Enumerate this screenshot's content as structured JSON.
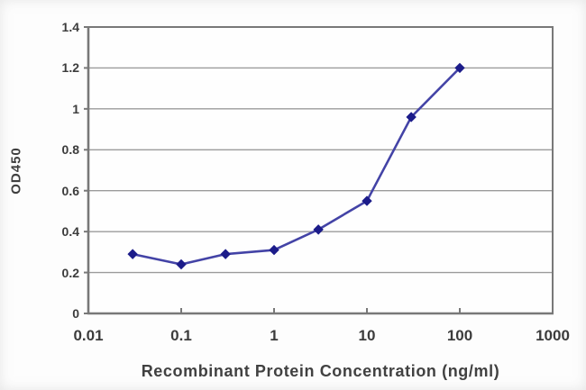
{
  "chart_data": {
    "type": "line",
    "title": "",
    "xlabel": "Recombinant Protein Concentration (ng/ml)",
    "ylabel": "OD450",
    "x_scale": "log",
    "xlim": [
      0.01,
      1000
    ],
    "ylim": [
      0,
      1.4
    ],
    "x_tick_values": [
      0.01,
      0.1,
      1,
      10,
      100,
      1000
    ],
    "x_tick_labels": [
      "0.01",
      "0.1",
      "1",
      "10",
      "100",
      "1000"
    ],
    "y_tick_values": [
      0,
      0.2,
      0.4,
      0.6,
      0.8,
      1,
      1.2,
      1.4
    ],
    "y_tick_labels": [
      "0",
      "0.2",
      "0.4",
      "0.6",
      "0.8",
      "1",
      "1.2",
      "1.4"
    ],
    "grid": "horizontal-only",
    "legend": "none",
    "series": [
      {
        "x": [
          0.03,
          0.1,
          0.3,
          1,
          3,
          10,
          30,
          100
        ],
        "y": [
          0.29,
          0.24,
          0.29,
          0.31,
          0.41,
          0.55,
          0.96,
          1.2
        ],
        "marker": "diamond"
      }
    ],
    "colors": {
      "line": "#4343a6",
      "marker": "#1c1c8a",
      "grid": "#9b9b9b",
      "axis": "#787878",
      "tick_text": "#3c3c3c",
      "label_text": "#414141",
      "plot_background": "#fefefe"
    }
  }
}
